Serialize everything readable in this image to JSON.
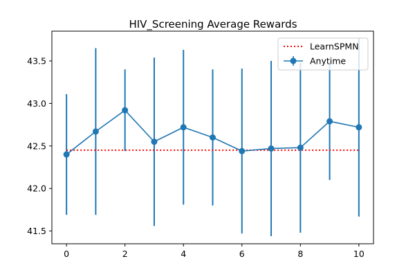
{
  "chart_data": {
    "type": "line",
    "title": "HIV_Screening Average Rewards",
    "xlabel": "",
    "ylabel": "",
    "xlim": [
      -0.5,
      10.5
    ],
    "ylim": [
      41.35,
      43.85
    ],
    "xticks": [
      0,
      2,
      4,
      6,
      8,
      10
    ],
    "xtick_labels": [
      "0",
      "2",
      "4",
      "6",
      "8",
      "10"
    ],
    "yticks": [
      41.5,
      42.0,
      42.5,
      43.0,
      43.5
    ],
    "ytick_labels": [
      "41.5",
      "42.0",
      "42.5",
      "43.0",
      "43.5"
    ],
    "grid": false,
    "legend_position": "upper right",
    "series": [
      {
        "name": "LearnSPMN",
        "style": "dotted",
        "color": "#ff0000",
        "x": [
          0,
          10
        ],
        "y": [
          42.45,
          42.45
        ]
      },
      {
        "name": "Anytime",
        "style": "solid-with-markers-and-errorbars",
        "color": "#1f77b4",
        "x": [
          0,
          1,
          2,
          3,
          4,
          5,
          6,
          7,
          8,
          9,
          10
        ],
        "y": [
          42.4,
          42.67,
          42.92,
          42.55,
          42.72,
          42.6,
          42.44,
          42.47,
          42.48,
          42.79,
          42.72
        ],
        "err": [
          0.71,
          0.98,
          0.48,
          0.99,
          0.91,
          0.8,
          0.97,
          1.03,
          1.0,
          0.69,
          1.05
        ]
      }
    ]
  }
}
